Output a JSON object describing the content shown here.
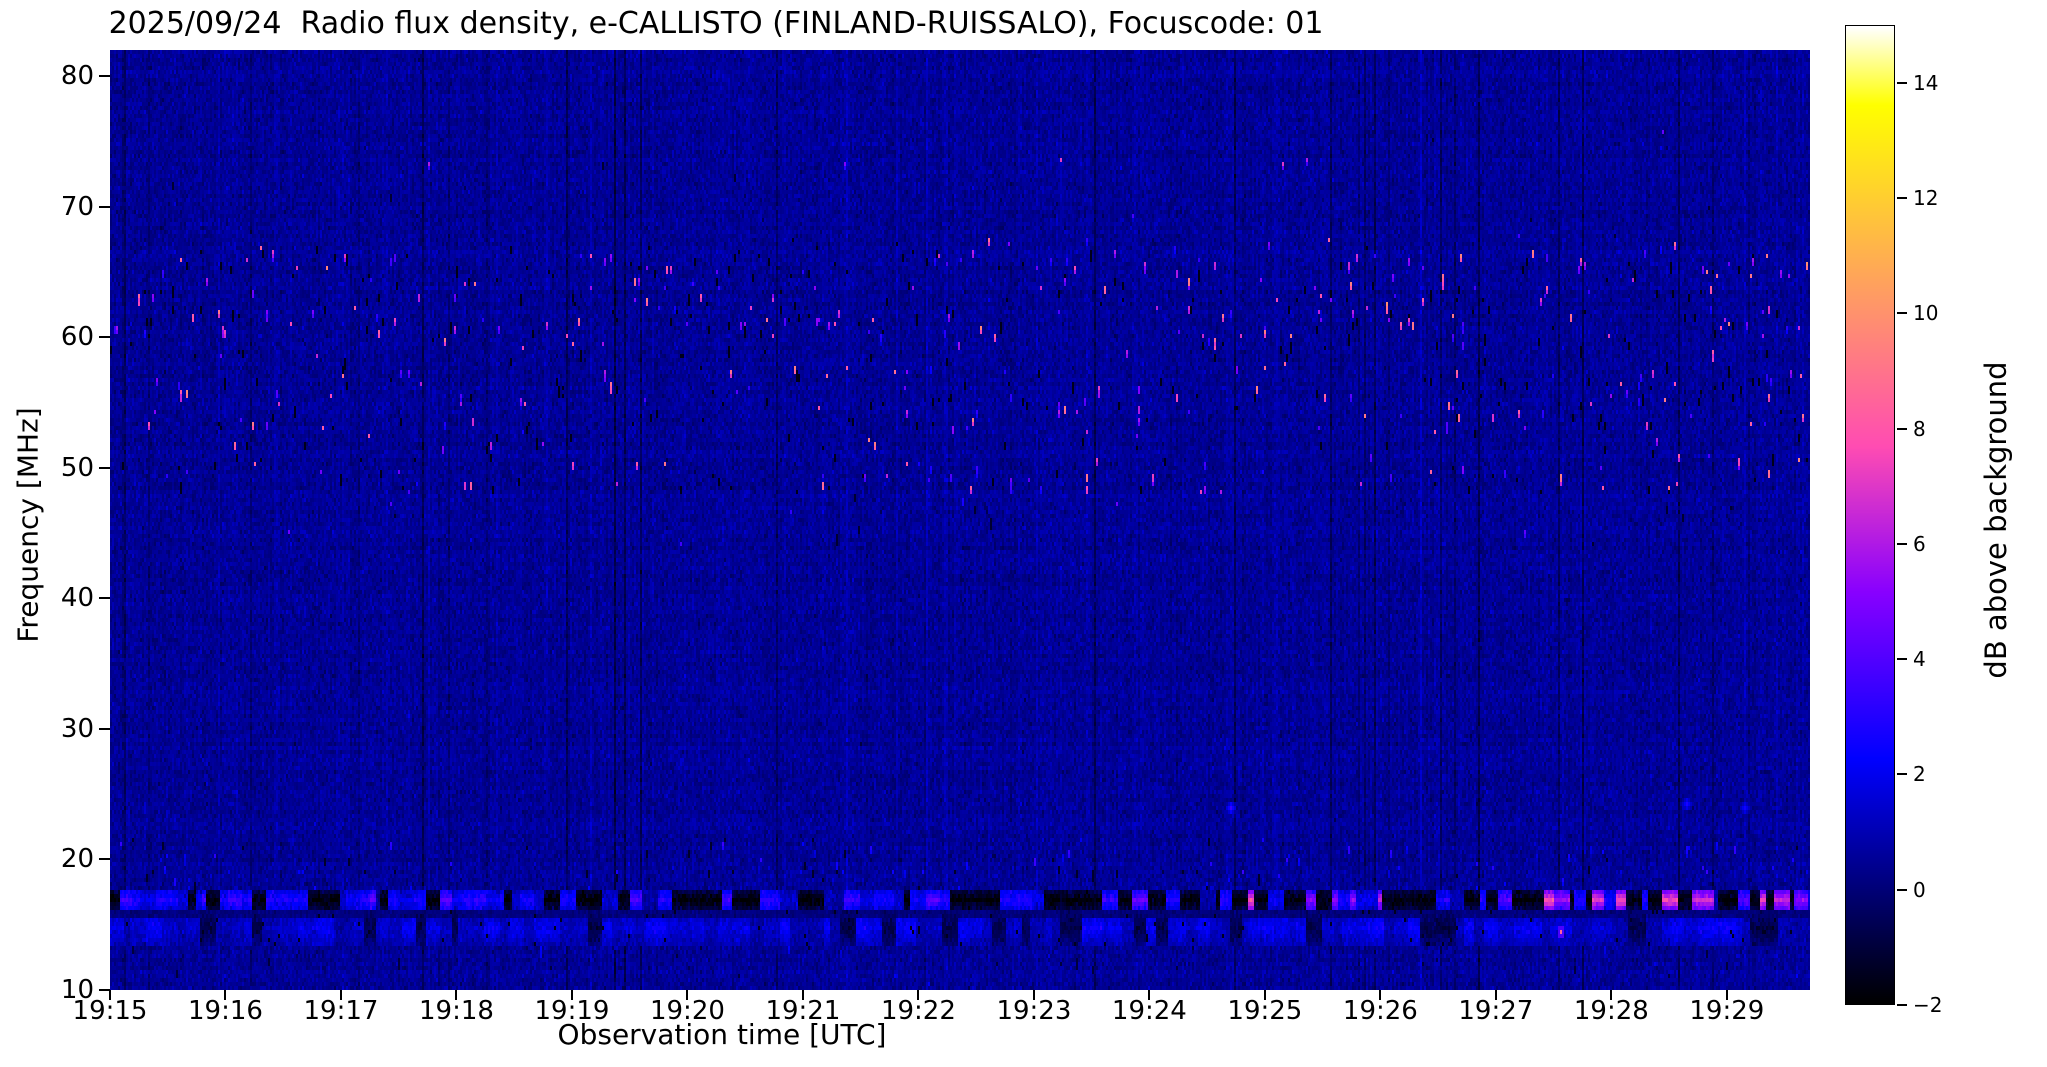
{
  "chart_data": {
    "type": "heatmap",
    "title": "2025/09/24  Radio flux density, e-CALLISTO (FINLAND-RUISSALO), Focuscode: 01",
    "date": "2025/09/24",
    "instrument": "e-CALLISTO",
    "station": "FINLAND-RUISSALO",
    "focuscode": "01",
    "xlabel": "Observation time [UTC]",
    "ylabel": "Frequency [MHz]",
    "colorbar_label": "dB above background",
    "x_tick_labels": [
      "19:15",
      "19:16",
      "19:17",
      "19:18",
      "19:19",
      "19:20",
      "19:21",
      "19:22",
      "19:23",
      "19:24",
      "19:25",
      "19:26",
      "19:27",
      "19:28",
      "19:29"
    ],
    "x_range_minutes": [
      0,
      14.72
    ],
    "y_tick_values": [
      10,
      20,
      30,
      40,
      50,
      60,
      70,
      80
    ],
    "ylim_mhz": [
      10,
      82
    ],
    "colormap": "gnuplot2",
    "color_limits_db": [
      -2,
      15
    ],
    "colorbar_tick_values": [
      -2,
      0,
      2,
      4,
      6,
      8,
      10,
      12,
      14
    ],
    "background_db": 0.5,
    "grid": false,
    "legend": "none",
    "features": {
      "seed": 42,
      "noise_sigma_db": 0.32,
      "column_gain_sigma_db": 0.12,
      "dark_column_rate": 0.035,
      "row_gain_sigma_db": 0.07,
      "speckle_bands": [
        {
          "f_mhz": [
            48,
            67.5
          ],
          "bright_rate": 0.004,
          "bright_db": [
            2.5,
            9.5
          ],
          "dark_rate": 0.004,
          "dark_db": -1.6
        },
        {
          "f_mhz": [
            53,
            57
          ],
          "bright_rate": 0.004,
          "bright_db": [
            3,
            10
          ],
          "dark_rate": 0.003,
          "dark_db": -1.6
        },
        {
          "f_mhz": [
            60,
            66.5
          ],
          "bright_rate": 0.005,
          "bright_db": [
            3,
            10
          ],
          "dark_rate": 0.003,
          "dark_db": -1.6
        },
        {
          "f_mhz": [
            44,
            48
          ],
          "bright_rate": 0.0008,
          "bright_db": [
            2,
            5
          ],
          "dark_rate": 0.001,
          "dark_db": -1.2
        },
        {
          "f_mhz": [
            67.5,
            76
          ],
          "bright_rate": 0.0002,
          "bright_db": [
            3,
            8
          ],
          "dark_rate": 0.0004,
          "dark_db": -1.2
        },
        {
          "f_mhz": [
            19,
            21.5
          ],
          "bright_rate": 0.009,
          "bright_db": [
            1.2,
            3.5
          ],
          "dark_rate": 0.003,
          "dark_db": -1.3
        },
        {
          "f_mhz": [
            17.8,
            19.3
          ],
          "bright_rate": 0.005,
          "bright_db": [
            1.2,
            3
          ],
          "dark_rate": 0.003,
          "dark_db": -1.3
        },
        {
          "f_mhz": [
            10.8,
            13.6
          ],
          "bright_rate": 0.002,
          "bright_db": [
            1,
            2.5
          ],
          "dark_rate": 0.003,
          "dark_db": -1.0
        }
      ],
      "rfi_line": {
        "f_mhz": [
          16.3,
          17.7
        ],
        "black_db": -1.9,
        "blue_db": 2.6,
        "magenta_db": 6.5,
        "block_cols": 7,
        "magenta_after_min": 9
      },
      "blue_band": {
        "f_mhz": [
          13.8,
          16.0
        ],
        "mean_db": 1.1,
        "block_cols": 6,
        "dark_dash_rate": 0.01,
        "dark_db": -1.5
      },
      "dark_row": {
        "f_mhz": [
          15.9,
          16.25
        ],
        "db": -0.4
      },
      "bright_spot": {
        "t_min": 12.55,
        "f_mhz": 14.6,
        "db": 8.5
      },
      "blobs": [
        {
          "t_min": 9.7,
          "f_mhz": 24.2,
          "db": 3.4
        },
        {
          "t_min": 13.65,
          "f_mhz": 24.3,
          "db": 2.8
        },
        {
          "t_min": 14.15,
          "f_mhz": 24.2,
          "db": 2.6
        }
      ],
      "high_freq_dots": [
        {
          "t_min": 2.75,
          "f_mhz": 73.3,
          "db": 6
        },
        {
          "t_min": 6.35,
          "f_mhz": 73.5,
          "db": 5
        },
        {
          "t_min": 10.15,
          "f_mhz": 73.4,
          "db": 7
        },
        {
          "t_min": 10.35,
          "f_mhz": 73.6,
          "db": 6
        }
      ]
    }
  }
}
